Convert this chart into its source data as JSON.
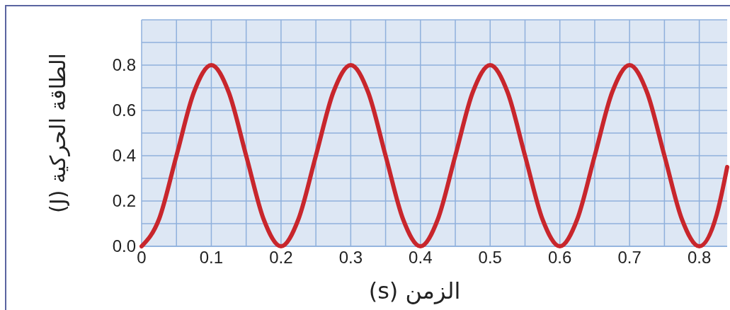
{
  "chart_data": {
    "type": "line",
    "xlabel": "الزمن (s)",
    "ylabel": "الطاقة الحركية (J)",
    "x": [
      0,
      0.025,
      0.05,
      0.075,
      0.1,
      0.125,
      0.15,
      0.175,
      0.2,
      0.225,
      0.25,
      0.275,
      0.3,
      0.325,
      0.35,
      0.375,
      0.4,
      0.425,
      0.45,
      0.475,
      0.5,
      0.525,
      0.55,
      0.575,
      0.6,
      0.625,
      0.65,
      0.675,
      0.7,
      0.725,
      0.75,
      0.775,
      0.8,
      0.825,
      0.84
    ],
    "series": [
      {
        "color": "#c8262c",
        "values": [
          0,
          0.12,
          0.4,
          0.68,
          0.8,
          0.68,
          0.4,
          0.12,
          0,
          0.12,
          0.4,
          0.68,
          0.8,
          0.68,
          0.4,
          0.12,
          0,
          0.12,
          0.4,
          0.68,
          0.8,
          0.68,
          0.4,
          0.12,
          0,
          0.12,
          0.4,
          0.68,
          0.8,
          0.68,
          0.4,
          0.12,
          0,
          0.14,
          0.35
        ]
      }
    ],
    "xlim": [
      0,
      0.84
    ],
    "ylim": [
      0,
      1
    ],
    "xticks": [
      0,
      {
        "value": 0.05,
        "label": null
      },
      0.1,
      {
        "value": 0.15,
        "label": null
      },
      0.2,
      {
        "value": 0.25,
        "label": null
      },
      0.3,
      {
        "value": 0.35,
        "label": null
      },
      0.4,
      {
        "value": 0.45,
        "label": null
      },
      0.5,
      {
        "value": 0.55,
        "label": null
      },
      0.6,
      {
        "value": 0.65,
        "label": null
      },
      0.7,
      {
        "value": 0.75,
        "label": null
      },
      0.8
    ],
    "yticks": [
      {
        "value": 0,
        "label": "0.0"
      },
      {
        "value": 0.1,
        "label": null
      },
      0.2,
      {
        "value": 0.3,
        "label": null
      },
      0.4,
      {
        "value": 0.5,
        "label": null
      },
      0.6,
      {
        "value": 0.7,
        "label": null
      },
      0.8,
      {
        "value": 0.9,
        "label": null
      },
      {
        "value": 1,
        "label": null
      }
    ],
    "grid": true,
    "marker": "none",
    "line_style": "solid"
  }
}
